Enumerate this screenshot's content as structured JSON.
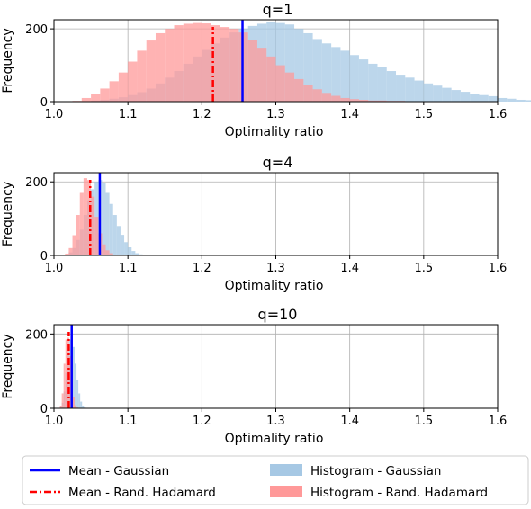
{
  "colors": {
    "gaussian_hist": "#a6c8e4",
    "hadamard_hist": "#ff9999",
    "gaussian_mean": "#0000ff",
    "hadamard_mean": "#ff0000"
  },
  "legend": {
    "placement": "bottom",
    "entries": [
      "Mean - Gaussian",
      "Mean - Rand. Hadamard",
      "Histogram - Gaussian",
      "Histogram - Rand. Hadamard"
    ]
  },
  "chart_data": [
    {
      "type": "histogram",
      "title": "q=1",
      "xlabel": "Optimality ratio",
      "ylabel": "Frequency",
      "xlim": [
        1.0,
        1.6
      ],
      "ylim": [
        0,
        225
      ],
      "xticks": [
        "1.0",
        "1.1",
        "1.2",
        "1.3",
        "1.4",
        "1.5",
        "1.6"
      ],
      "yticks": [
        "0",
        "200"
      ],
      "grid": true,
      "mean_gaussian": 1.255,
      "mean_hadamard": 1.215,
      "gaussian_hist": {
        "start": 1.05,
        "bin_width": 0.0125,
        "counts": [
          3,
          5,
          8,
          12,
          18,
          26,
          36,
          50,
          66,
          84,
          104,
          124,
          142,
          160,
          176,
          190,
          200,
          208,
          214,
          218,
          216,
          212,
          200,
          188,
          172,
          160,
          150,
          140,
          128,
          116,
          104,
          94,
          84,
          74,
          66,
          58,
          50,
          44,
          38,
          32,
          27,
          22,
          18,
          15,
          10,
          8,
          5,
          4
        ]
      },
      "hadamard_hist": {
        "start": 1.025,
        "bin_width": 0.0125,
        "counts": [
          2,
          10,
          20,
          36,
          56,
          80,
          110,
          140,
          168,
          188,
          200,
          210,
          214,
          216,
          215,
          210,
          205,
          200,
          190,
          170,
          148,
          124,
          100,
          80,
          62,
          46,
          34,
          24,
          16,
          10,
          7,
          5,
          3,
          3,
          2,
          2,
          1,
          1,
          1,
          1,
          0,
          0,
          0,
          0,
          0,
          0,
          0,
          0,
          0,
          0,
          0,
          0,
          0,
          0,
          2
        ]
      }
    },
    {
      "type": "histogram",
      "title": "q=4",
      "xlabel": "Optimality ratio",
      "ylabel": "Frequency",
      "xlim": [
        1.0,
        1.6
      ],
      "ylim": [
        0,
        225
      ],
      "xticks": [
        "1.0",
        "1.1",
        "1.2",
        "1.3",
        "1.4",
        "1.5",
        "1.6"
      ],
      "yticks": [
        "0",
        "200"
      ],
      "grid": true,
      "mean_gaussian": 1.062,
      "mean_hadamard": 1.049,
      "gaussian_hist": {
        "start": 1.015,
        "bin_width": 0.005,
        "counts": [
          2,
          8,
          20,
          42,
          70,
          110,
          150,
          180,
          200,
          205,
          196,
          170,
          140,
          110,
          80,
          56,
          36,
          22,
          12,
          6,
          3,
          1
        ]
      },
      "hadamard_hist": {
        "start": 1.015,
        "bin_width": 0.005,
        "counts": [
          5,
          20,
          55,
          110,
          170,
          210,
          205,
          160,
          105,
          60,
          30,
          14,
          6,
          2
        ]
      }
    },
    {
      "type": "histogram",
      "title": "q=10",
      "xlabel": "Optimality ratio",
      "ylabel": "Frequency",
      "xlim": [
        1.0,
        1.6
      ],
      "ylim": [
        0,
        225
      ],
      "xticks": [
        "1.0",
        "1.1",
        "1.2",
        "1.3",
        "1.4",
        "1.5",
        "1.6"
      ],
      "yticks": [
        "0",
        "200"
      ],
      "grid": true,
      "mean_gaussian": 1.024,
      "mean_hadamard": 1.02,
      "gaussian_hist": {
        "start": 1.008,
        "bin_width": 0.0025,
        "counts": [
          3,
          15,
          45,
          95,
          150,
          185,
          190,
          165,
          120,
          75,
          40,
          18,
          6,
          2
        ]
      },
      "hadamard_hist": {
        "start": 1.008,
        "bin_width": 0.0025,
        "counts": [
          5,
          40,
          120,
          185,
          190,
          140,
          75,
          30,
          8,
          2
        ]
      }
    }
  ]
}
